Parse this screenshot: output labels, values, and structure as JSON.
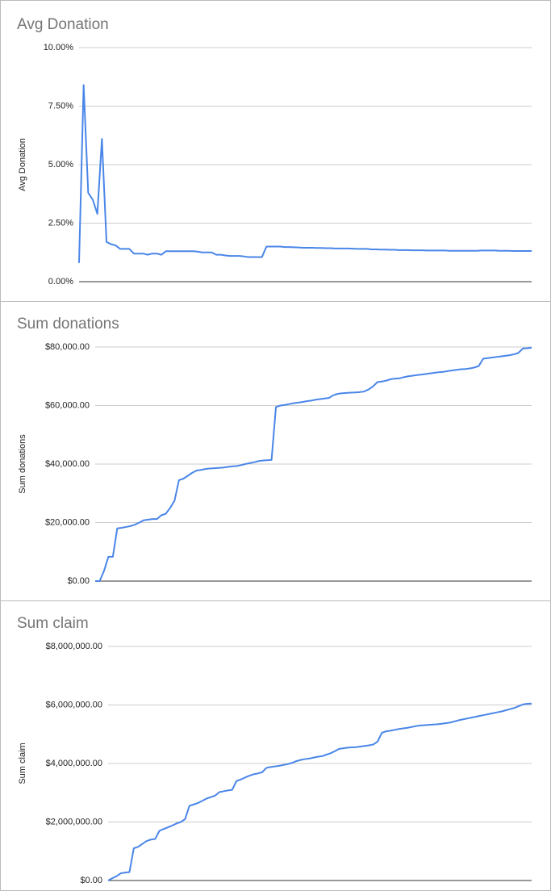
{
  "chart_data": [
    {
      "type": "line",
      "title": "Avg Donation",
      "y_label": "Avg Donation",
      "color": "#4a86e8",
      "grid": true,
      "ylim": [
        0,
        10
      ],
      "yticks": [
        {
          "value": 0,
          "label": "0.00%"
        },
        {
          "value": 2.5,
          "label": "2.50%"
        },
        {
          "value": 5,
          "label": "5.00%"
        },
        {
          "value": 7.5,
          "label": "7.50%"
        },
        {
          "value": 10,
          "label": "10.00%"
        }
      ],
      "categories": [
        null,
        null,
        null,
        null,
        null,
        null,
        null,
        null,
        null,
        null,
        null,
        null,
        null,
        null,
        null,
        null,
        null,
        null,
        null,
        null,
        null,
        null,
        null,
        null,
        null,
        null,
        null,
        null,
        null,
        null,
        null,
        null,
        null,
        null,
        null,
        null,
        null,
        null,
        null,
        null,
        null,
        null,
        null,
        null,
        null,
        null,
        null,
        null,
        null,
        null,
        null,
        null,
        null,
        null,
        null,
        null,
        null,
        null,
        null,
        null,
        null,
        null,
        null,
        null,
        null,
        null,
        null,
        null,
        null,
        null,
        null,
        null,
        null,
        null,
        null,
        null,
        null,
        null,
        null,
        null,
        null,
        null,
        null,
        null,
        null,
        null,
        null,
        null,
        null,
        null,
        null,
        null,
        null,
        null,
        null,
        null,
        null,
        null,
        null,
        null
      ],
      "values": [
        0.8,
        8.4,
        3.8,
        3.5,
        2.9,
        6.1,
        1.7,
        1.6,
        1.55,
        1.4,
        1.4,
        1.4,
        1.2,
        1.2,
        1.2,
        1.15,
        1.2,
        1.2,
        1.15,
        1.3,
        1.3,
        1.3,
        1.3,
        1.3,
        1.3,
        1.3,
        1.28,
        1.25,
        1.25,
        1.25,
        1.15,
        1.15,
        1.12,
        1.1,
        1.1,
        1.1,
        1.08,
        1.05,
        1.05,
        1.05,
        1.05,
        1.5,
        1.5,
        1.5,
        1.5,
        1.48,
        1.48,
        1.47,
        1.46,
        1.45,
        1.45,
        1.45,
        1.44,
        1.44,
        1.43,
        1.43,
        1.42,
        1.42,
        1.42,
        1.42,
        1.41,
        1.4,
        1.4,
        1.4,
        1.38,
        1.38,
        1.37,
        1.37,
        1.36,
        1.36,
        1.35,
        1.35,
        1.35,
        1.34,
        1.34,
        1.34,
        1.33,
        1.33,
        1.33,
        1.33,
        1.33,
        1.32,
        1.32,
        1.32,
        1.32,
        1.32,
        1.32,
        1.32,
        1.33,
        1.33,
        1.33,
        1.33,
        1.32,
        1.32,
        1.32,
        1.31,
        1.31,
        1.31,
        1.31,
        1.31
      ]
    },
    {
      "type": "line",
      "title": "Sum donations",
      "y_label": "Sum donations",
      "color": "#4a86e8",
      "grid": true,
      "ylim": [
        0,
        80000
      ],
      "yticks": [
        {
          "value": 0,
          "label": "$0.00"
        },
        {
          "value": 20000,
          "label": "$20,000.00"
        },
        {
          "value": 40000,
          "label": "$40,000.00"
        },
        {
          "value": 60000,
          "label": "$60,000.00"
        },
        {
          "value": 80000,
          "label": "$80,000.00"
        }
      ],
      "categories": [
        null,
        null,
        null,
        null,
        null,
        null,
        null,
        null,
        null,
        null,
        null,
        null,
        null,
        null,
        null,
        null,
        null,
        null,
        null,
        null,
        null,
        null,
        null,
        null,
        null,
        null,
        null,
        null,
        null,
        null,
        null,
        null,
        null,
        null,
        null,
        null,
        null,
        null,
        null,
        null,
        null,
        null,
        null,
        null,
        null,
        null,
        null,
        null,
        null,
        null,
        null,
        null,
        null,
        null,
        null,
        null,
        null,
        null,
        null,
        null,
        null,
        null,
        null,
        null,
        null,
        null,
        null,
        null,
        null,
        null,
        null,
        null,
        null,
        null,
        null,
        null,
        null,
        null,
        null,
        null,
        null,
        null,
        null,
        null,
        null,
        null,
        null,
        null,
        null,
        null,
        null,
        null,
        null,
        null,
        null,
        null,
        null,
        null,
        null,
        null
      ],
      "values": [
        0,
        0,
        3500,
        8300,
        8300,
        18000,
        18200,
        18500,
        18800,
        19300,
        20000,
        20800,
        21000,
        21200,
        21200,
        22500,
        23000,
        25000,
        27500,
        34500,
        35000,
        36000,
        37000,
        37800,
        38000,
        38300,
        38500,
        38600,
        38700,
        38800,
        39000,
        39200,
        39300,
        39600,
        40000,
        40300,
        40600,
        41000,
        41200,
        41300,
        41400,
        59500,
        60000,
        60200,
        60500,
        60800,
        61000,
        61200,
        61500,
        61700,
        62000,
        62200,
        62400,
        62600,
        63500,
        64000,
        64200,
        64300,
        64400,
        64500,
        64600,
        64800,
        65500,
        66500,
        68000,
        68200,
        68500,
        69000,
        69200,
        69300,
        69700,
        70000,
        70200,
        70400,
        70600,
        70800,
        71000,
        71200,
        71400,
        71500,
        71800,
        72000,
        72200,
        72400,
        72500,
        72700,
        73000,
        73500,
        76000,
        76200,
        76400,
        76600,
        76800,
        77000,
        77200,
        77500,
        78000,
        79500,
        79600,
        79800
      ]
    },
    {
      "type": "line",
      "title": "Sum claim",
      "y_label": "Sum claim",
      "color": "#4a86e8",
      "grid": true,
      "ylim": [
        0,
        8000000
      ],
      "yticks": [
        {
          "value": 0,
          "label": "$0.00"
        },
        {
          "value": 2000000,
          "label": "$2,000,000.00"
        },
        {
          "value": 4000000,
          "label": "$4,000,000.00"
        },
        {
          "value": 6000000,
          "label": "$6,000,000.00"
        },
        {
          "value": 8000000,
          "label": "$8,000,000.00"
        }
      ],
      "categories": [
        null,
        null,
        null,
        null,
        null,
        null,
        null,
        null,
        null,
        null,
        null,
        null,
        null,
        null,
        null,
        null,
        null,
        null,
        null,
        null,
        null,
        null,
        null,
        null,
        null,
        null,
        null,
        null,
        null,
        null,
        null,
        null,
        null,
        null,
        null,
        null,
        null,
        null,
        null,
        null,
        null,
        null,
        null,
        null,
        null,
        null,
        null,
        null,
        null,
        null,
        null,
        null,
        null,
        null,
        null,
        null,
        null,
        null,
        null,
        null,
        null,
        null,
        null,
        null,
        null,
        null,
        null,
        null,
        null,
        null,
        null,
        null,
        null,
        null,
        null,
        null,
        null,
        null,
        null,
        null,
        null,
        null,
        null,
        null,
        null,
        null,
        null,
        null,
        null,
        null,
        null,
        null,
        null,
        null,
        null,
        null,
        null,
        null,
        null,
        null
      ],
      "values": [
        0,
        80000,
        150000,
        250000,
        270000,
        290000,
        1100000,
        1150000,
        1250000,
        1350000,
        1400000,
        1420000,
        1700000,
        1760000,
        1820000,
        1880000,
        1950000,
        2000000,
        2100000,
        2550000,
        2600000,
        2650000,
        2720000,
        2800000,
        2850000,
        2900000,
        3020000,
        3050000,
        3080000,
        3100000,
        3400000,
        3450000,
        3520000,
        3580000,
        3630000,
        3660000,
        3700000,
        3850000,
        3880000,
        3900000,
        3920000,
        3950000,
        3980000,
        4020000,
        4080000,
        4120000,
        4150000,
        4170000,
        4200000,
        4230000,
        4250000,
        4300000,
        4350000,
        4420000,
        4500000,
        4520000,
        4540000,
        4550000,
        4560000,
        4580000,
        4600000,
        4620000,
        4650000,
        4750000,
        5050000,
        5100000,
        5120000,
        5150000,
        5180000,
        5200000,
        5220000,
        5250000,
        5280000,
        5300000,
        5310000,
        5320000,
        5330000,
        5340000,
        5360000,
        5380000,
        5400000,
        5440000,
        5480000,
        5510000,
        5540000,
        5570000,
        5600000,
        5630000,
        5660000,
        5690000,
        5720000,
        5750000,
        5780000,
        5820000,
        5860000,
        5900000,
        5960000,
        6020000,
        6040000,
        6050000
      ]
    }
  ]
}
